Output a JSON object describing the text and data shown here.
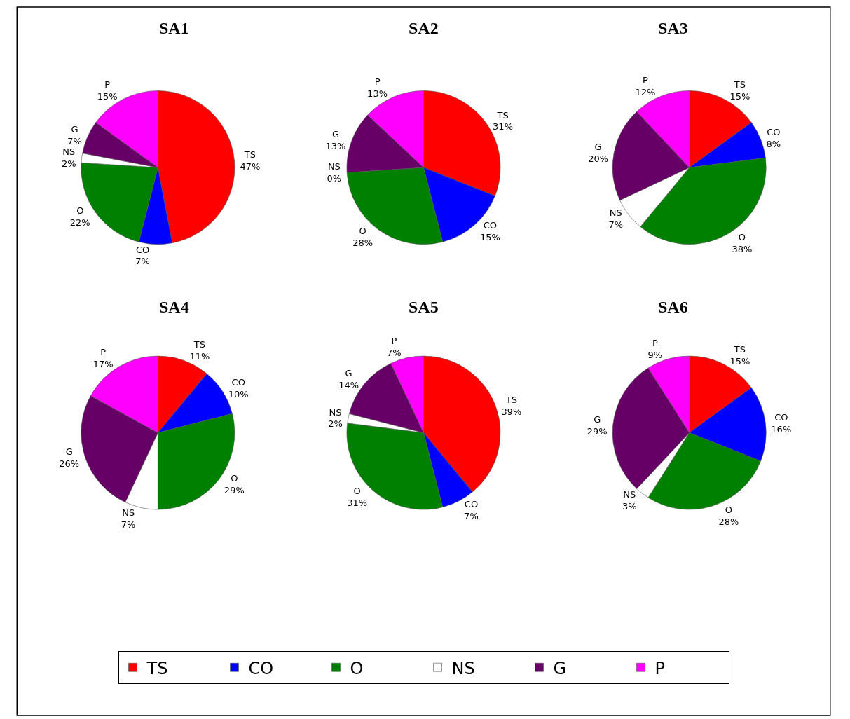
{
  "chart_data": [
    {
      "type": "pie",
      "title": "SA1",
      "categories": [
        "TS",
        "CO",
        "O",
        "NS",
        "G",
        "P"
      ],
      "values": [
        47,
        7,
        22,
        2,
        7,
        15
      ],
      "value_labels": [
        "47%",
        "7%",
        "22%",
        "2%",
        "7%",
        "15%"
      ],
      "colors": [
        "#ff0000",
        "#0000ff",
        "#008000",
        "#ffffff",
        "#660066",
        "#ff00ff"
      ],
      "legend": "bottom"
    },
    {
      "type": "pie",
      "title": "SA2",
      "categories": [
        "TS",
        "CO",
        "O",
        "NS",
        "G",
        "P"
      ],
      "values": [
        31,
        15,
        28,
        0,
        13,
        13
      ],
      "value_labels": [
        "31%",
        "15%",
        "28%",
        "0%",
        "13%",
        "13%"
      ],
      "colors": [
        "#ff0000",
        "#0000ff",
        "#008000",
        "#ffffff",
        "#660066",
        "#ff00ff"
      ]
    },
    {
      "type": "pie",
      "title": "SA3",
      "categories": [
        "TS",
        "CO",
        "O",
        "NS",
        "G",
        "P"
      ],
      "values": [
        15,
        8,
        38,
        7,
        20,
        12
      ],
      "value_labels": [
        "15%",
        "8%",
        "38%",
        "7%",
        "20%",
        "12%"
      ],
      "colors": [
        "#ff0000",
        "#0000ff",
        "#008000",
        "#ffffff",
        "#660066",
        "#ff00ff"
      ]
    },
    {
      "type": "pie",
      "title": "SA4",
      "categories": [
        "TS",
        "CO",
        "O",
        "NS",
        "G",
        "P"
      ],
      "values": [
        11,
        10,
        29,
        7,
        26,
        17
      ],
      "value_labels": [
        "11%",
        "10%",
        "29%",
        "7%",
        "26%",
        "17%"
      ],
      "colors": [
        "#ff0000",
        "#0000ff",
        "#008000",
        "#ffffff",
        "#660066",
        "#ff00ff"
      ]
    },
    {
      "type": "pie",
      "title": "SA5",
      "categories": [
        "TS",
        "CO",
        "O",
        "NS",
        "G",
        "P"
      ],
      "values": [
        39,
        7,
        31,
        2,
        14,
        7
      ],
      "value_labels": [
        "39%",
        "7%",
        "31%",
        "2%",
        "14%",
        "7%"
      ],
      "colors": [
        "#ff0000",
        "#0000ff",
        "#008000",
        "#ffffff",
        "#660066",
        "#ff00ff"
      ]
    },
    {
      "type": "pie",
      "title": "SA6",
      "categories": [
        "TS",
        "CO",
        "O",
        "NS",
        "G",
        "P"
      ],
      "values": [
        15,
        16,
        28,
        3,
        29,
        9
      ],
      "value_labels": [
        "15%",
        "16%",
        "28%",
        "3%",
        "29%",
        "9%"
      ],
      "colors": [
        "#ff0000",
        "#0000ff",
        "#008000",
        "#ffffff",
        "#660066",
        "#ff00ff"
      ]
    }
  ]
}
